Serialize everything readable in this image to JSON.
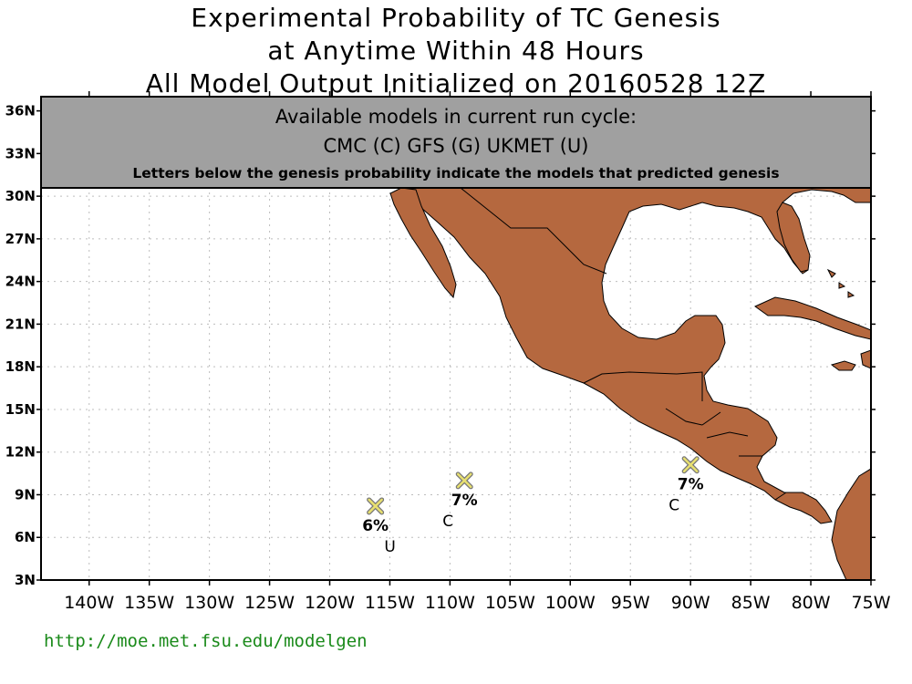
{
  "title": {
    "line1": "Experimental Probability of TC Genesis",
    "line2": "at Anytime Within 48 Hours",
    "line3": "All Model Output Initialized on 20160528 12Z"
  },
  "banner": {
    "line1": "Available models in current run cycle:",
    "line2": "CMC (C) GFS (G)  UKMET (U)",
    "line3": "Letters below the genesis probability indicate the models that predicted genesis"
  },
  "axes": {
    "lat_labels": [
      "36N",
      "33N",
      "30N",
      "27N",
      "24N",
      "21N",
      "18N",
      "15N",
      "12N",
      "9N",
      "6N",
      "3N"
    ],
    "lon_labels": [
      "140W",
      "135W",
      "130W",
      "125W",
      "120W",
      "115W",
      "110W",
      "105W",
      "100W",
      "95W",
      "90W",
      "85W",
      "80W",
      "75W"
    ],
    "lat_range": [
      3,
      37
    ],
    "lon_range": [
      -144,
      -75
    ],
    "grid": true
  },
  "genesis_points": [
    {
      "lon": -116.2,
      "lat": 8.2,
      "probability": "6%",
      "models": "U"
    },
    {
      "lon": -108.8,
      "lat": 10.0,
      "probability": "7%",
      "models": "C"
    },
    {
      "lon": -90.0,
      "lat": 11.1,
      "probability": "7%",
      "models": "C"
    }
  ],
  "colors": {
    "land": "#b5683f",
    "banner": "#a0a0a0",
    "marker": "#e8e070",
    "url": "#1a8a1a"
  },
  "footer": {
    "url": "http://moe.met.fsu.edu/modelgen"
  }
}
